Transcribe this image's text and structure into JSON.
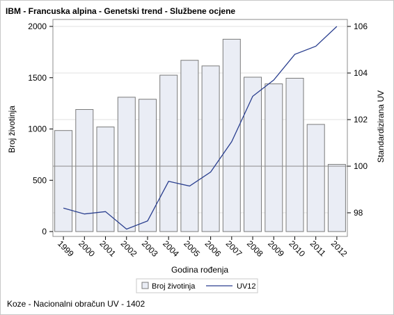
{
  "title": "IBM - Francuska alpina - Genetski trend - Službene ocjene",
  "footnote": "Koze - Nacionalni obračun UV - 1402",
  "colors": {
    "bar_fill": "#eaedf5",
    "bar_stroke": "#7a7a7a",
    "line": "#2a3f8f",
    "grid": "#e2e2e2",
    "ref_line": "#8c8c8c"
  },
  "chart_data": {
    "type": "bar",
    "categories": [
      "1999",
      "2000",
      "2001",
      "2002",
      "2003",
      "2004",
      "2005",
      "2006",
      "2007",
      "2008",
      "2009",
      "2010",
      "2011",
      "2012"
    ],
    "xlabel": "Godina rođenja",
    "ylabel": "Broj životinja",
    "y2label": "Standardizirana UV",
    "ylim": [
      0,
      2000
    ],
    "y2lim": [
      97.2,
      106.1
    ],
    "yticks": [
      0,
      500,
      1000,
      1500,
      2000
    ],
    "y2ticks": [
      98,
      100,
      102,
      104,
      106
    ],
    "reference_line_y2": 100,
    "grid": true,
    "legend_position": "bottom",
    "series": [
      {
        "name": "Broj životinja",
        "kind": "bar",
        "axis": "left",
        "values": [
          985,
          1190,
          1020,
          1310,
          1290,
          1525,
          1670,
          1615,
          1875,
          1505,
          1440,
          1495,
          1045,
          655
        ]
      },
      {
        "name": "UV12",
        "kind": "line",
        "axis": "right",
        "values": [
          98.2,
          97.95,
          98.05,
          97.3,
          97.65,
          99.35,
          99.15,
          99.75,
          101.05,
          103.0,
          103.7,
          104.8,
          105.15,
          106.0
        ]
      }
    ]
  }
}
